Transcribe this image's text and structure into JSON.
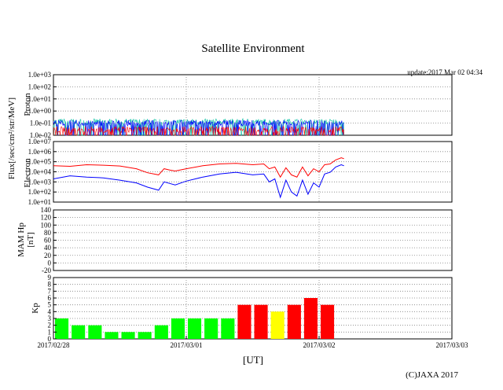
{
  "title": "Satellite Environment",
  "update_text": "update:2017 Mar 02 04:34",
  "copyright": "(C)JAXA 2017",
  "colors": {
    "proton_high": "#ff0000",
    "proton_mid": "#0000ff",
    "proton_low": "#00c0a0",
    "electron_high": "#ff0000",
    "electron_low": "#0000ff",
    "kp_quiet": "#00ff00",
    "kp_active": "#ffff00",
    "kp_storm": "#ff0000",
    "grid": "#808080"
  },
  "chart_data": {
    "type": "multi-panel",
    "x_axis": {
      "label": "[UT]",
      "ticks": [
        "2017/02/28",
        "2017/03/01",
        "2017/03/02",
        "2017/03/03"
      ],
      "range_hours": [
        0,
        72
      ],
      "data_end_hour": 52.5
    },
    "shared_ylabel_left": "Flux[/sec/cm²/str/MeV]",
    "panels": [
      {
        "id": "proton",
        "type": "line",
        "scale": "log",
        "ylabel": "Proton",
        "ylim": [
          0.01,
          1000
        ],
        "ticks": [
          "1.0e-02",
          "1.0e-01",
          "1.0e+00",
          "1.0e+01",
          "1.0e+02",
          "1.0e+03"
        ],
        "series": [
          {
            "color_key": "proton_low",
            "level": 0.13
          },
          {
            "color_key": "proton_mid",
            "level": 0.1
          },
          {
            "color_key": "proton_high",
            "level": 0.03
          }
        ]
      },
      {
        "id": "electron",
        "type": "line",
        "scale": "log",
        "ylabel": "Electron",
        "ylim": [
          10,
          10000000
        ],
        "ticks": [
          "1.0e+01",
          "1.0e+02",
          "1.0e+03",
          "1.0e+04",
          "1.0e+05",
          "1.0e+06",
          "1.0e+07"
        ],
        "series": [
          {
            "color_key": "electron_high",
            "x": [
              0,
              3,
              6,
              9,
              12,
              15,
              17,
              19,
              20,
              21,
              22,
              24,
              27,
              30,
              33,
              36,
              38,
              39,
              40,
              41,
              42,
              43,
              44,
              45,
              46,
              47,
              48,
              49,
              50,
              51,
              52,
              52.5
            ],
            "y": [
              40000,
              35000,
              50000,
              45000,
              38000,
              20000,
              8000,
              5000,
              20000,
              15000,
              12000,
              20000,
              40000,
              60000,
              70000,
              50000,
              60000,
              20000,
              30000,
              3000,
              25000,
              5000,
              3000,
              30000,
              4000,
              20000,
              10000,
              50000,
              60000,
              150000,
              250000,
              200000
            ]
          },
          {
            "color_key": "electron_low",
            "x": [
              0,
              3,
              6,
              9,
              12,
              15,
              17,
              19,
              20,
              21,
              22,
              24,
              27,
              30,
              33,
              36,
              38,
              39,
              40,
              41,
              42,
              43,
              44,
              45,
              46,
              47,
              48,
              49,
              50,
              51,
              52,
              52.5
            ],
            "y": [
              2000,
              4000,
              3000,
              2500,
              1500,
              800,
              300,
              150,
              1000,
              700,
              500,
              1200,
              3000,
              6000,
              9000,
              5000,
              6000,
              1000,
              2000,
              30,
              1500,
              100,
              40,
              1500,
              60,
              800,
              300,
              6000,
              9000,
              30000,
              50000,
              40000
            ]
          }
        ]
      },
      {
        "id": "mam",
        "type": "line",
        "scale": "linear",
        "ylabel": "MAM Hp",
        "yunit": "[nT]",
        "ylim": [
          -20,
          140
        ],
        "ticks": [
          "-20",
          "0",
          "20",
          "40",
          "60",
          "80",
          "100",
          "120",
          "140"
        ],
        "series": []
      },
      {
        "id": "kp",
        "type": "bar",
        "ylabel": "Kp",
        "ylim": [
          0,
          9
        ],
        "ticks": [
          "0",
          "1",
          "2",
          "3",
          "4",
          "5",
          "6",
          "7",
          "8",
          "9"
        ],
        "interval_hours": 3,
        "values": [
          3,
          2,
          2,
          1,
          1,
          1,
          2,
          3,
          3,
          3,
          3,
          5,
          5,
          4,
          5,
          6,
          5
        ],
        "levels": [
          "quiet",
          "quiet",
          "quiet",
          "quiet",
          "quiet",
          "quiet",
          "quiet",
          "quiet",
          "quiet",
          "quiet",
          "quiet",
          "storm",
          "storm",
          "active",
          "storm",
          "storm",
          "storm"
        ]
      }
    ]
  }
}
